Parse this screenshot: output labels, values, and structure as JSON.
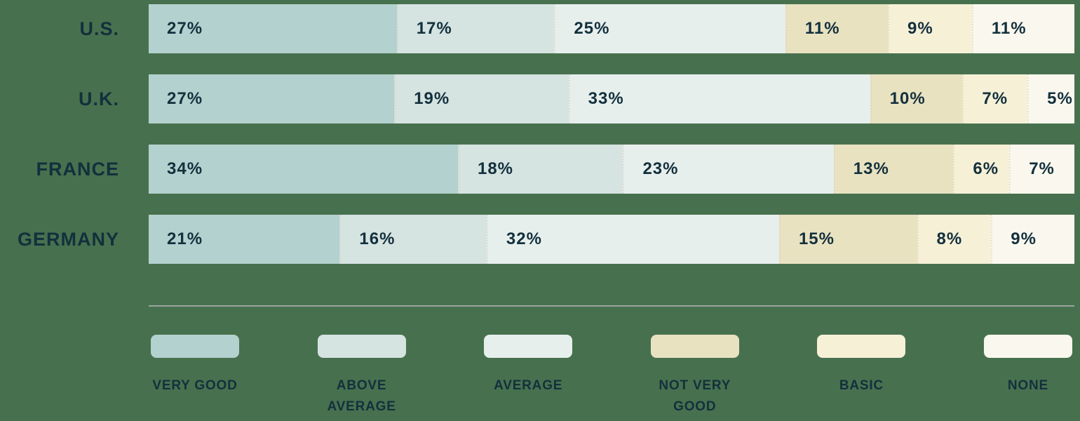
{
  "chart_data": {
    "type": "bar",
    "orientation": "horizontal",
    "stacked": true,
    "value_format": "percent",
    "categories": [
      "U.S.",
      "U.K.",
      "FRANCE",
      "GERMANY"
    ],
    "series": [
      {
        "name": "VERY GOOD",
        "color": "#b3d1ce",
        "values": [
          27,
          27,
          34,
          21
        ]
      },
      {
        "name": "ABOVE AVERAGE",
        "color": "#d5e3e1",
        "values": [
          17,
          19,
          18,
          16
        ]
      },
      {
        "name": "AVERAGE",
        "color": "#e7efed",
        "values": [
          25,
          33,
          23,
          32
        ]
      },
      {
        "name": "NOT VERY GOOD",
        "color": "#e9e2c1",
        "values": [
          11,
          10,
          13,
          15
        ]
      },
      {
        "name": "BASIC",
        "color": "#f6f0d7",
        "values": [
          9,
          7,
          6,
          8
        ]
      },
      {
        "name": "NONE",
        "color": "#faf8ee",
        "values": [
          11,
          5,
          7,
          9
        ]
      }
    ],
    "data_labels": true,
    "legend_position": "bottom",
    "grid": false,
    "title": "",
    "xlabel": "",
    "ylabel": ""
  },
  "colors": {
    "background": "#47714e",
    "text": "#13303d",
    "divider": "#9aa49f"
  }
}
